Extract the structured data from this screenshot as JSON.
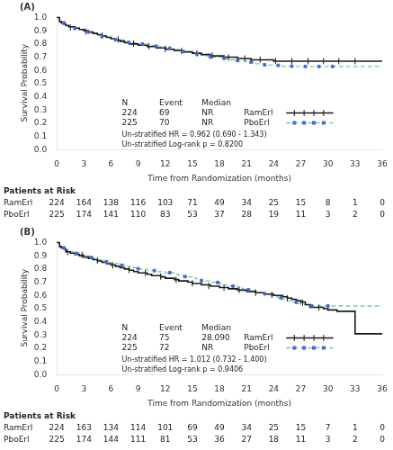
{
  "chart_data": [
    {
      "type": "line",
      "title": "(A)",
      "xlabel": "Time from Randomization (months)",
      "ylabel": "Survival Probability",
      "xlim": [
        0,
        36
      ],
      "ylim": [
        0.0,
        1.01
      ],
      "xticks": [
        0,
        3,
        6,
        9,
        12,
        15,
        18,
        21,
        24,
        27,
        30,
        33,
        36
      ],
      "yticks": [
        {
          "value": 0,
          "label": "0.0"
        },
        0.1,
        0.2,
        0.3,
        0.4,
        0.5,
        0.6,
        0.7,
        0.8,
        0.9,
        {
          "value": 1,
          "label": "1.0"
        }
      ],
      "grid": false,
      "series": [
        {
          "name": "PboErl",
          "type": "line",
          "line_style": "dashed",
          "color": "#7EC8A0",
          "x": [
            0,
            0.3,
            0.5,
            0.8,
            1.0,
            1.5,
            2.0,
            2.5,
            3.0,
            3.5,
            4.0,
            4.5,
            5.0,
            5.5,
            6.0,
            6.5,
            7.0,
            7.5,
            8.0,
            8.5,
            9.0,
            9.5,
            10.0,
            10.5,
            11.0,
            11.5,
            12.0,
            12.5,
            13.0,
            13.5,
            14.0,
            14.5,
            15.0,
            15.5,
            16.0,
            16.5,
            17.0,
            17.5,
            18.0,
            18.5,
            19.0,
            19.5,
            20.0,
            20.5,
            21.0,
            21.5,
            22.0,
            22.5,
            23.0,
            23.5,
            24.0,
            24.5,
            25.0,
            25.5,
            26.0,
            26.5,
            27.0,
            27.5,
            28.0,
            28.5,
            29.0,
            29.5,
            30.0,
            33.0,
            36.0
          ],
          "values": [
            1.0,
            0.97,
            0.96,
            0.95,
            0.94,
            0.93,
            0.92,
            0.91,
            0.9,
            0.89,
            0.88,
            0.87,
            0.86,
            0.85,
            0.84,
            0.83,
            0.83,
            0.82,
            0.81,
            0.81,
            0.8,
            0.8,
            0.79,
            0.79,
            0.78,
            0.78,
            0.77,
            0.76,
            0.76,
            0.75,
            0.74,
            0.74,
            0.73,
            0.72,
            0.72,
            0.71,
            0.7,
            0.7,
            0.7,
            0.69,
            0.68,
            0.68,
            0.67,
            0.67,
            0.66,
            0.66,
            0.65,
            0.65,
            0.64,
            0.64,
            0.64,
            0.64,
            0.63,
            0.63,
            0.63,
            0.63,
            0.63,
            0.63,
            0.63,
            0.63,
            0.63,
            0.63,
            0.63,
            0.63,
            0.63
          ]
        },
        {
          "name": "RamErl",
          "type": "line",
          "line_style": "solid",
          "color": "#1a1a1a",
          "x": [
            0,
            0.3,
            0.5,
            0.7,
            1.0,
            1.3,
            1.5,
            2.0,
            2.5,
            3.0,
            3.5,
            4.0,
            4.5,
            5.0,
            5.5,
            6.0,
            6.5,
            7.0,
            7.5,
            8.0,
            8.5,
            9.0,
            9.5,
            10.0,
            10.5,
            11.0,
            11.5,
            12.0,
            12.5,
            13.0,
            13.5,
            14.0,
            14.5,
            15.0,
            15.5,
            16.0,
            16.5,
            17.0,
            17.5,
            18.0,
            18.5,
            19.0,
            19.5,
            20.0,
            20.5,
            21.0,
            21.5,
            22.0,
            22.5,
            23.0,
            23.5,
            24.0,
            24.5,
            25.0,
            25.5,
            26.0,
            26.5,
            27.0,
            27.5,
            28.0,
            28.5,
            29.0,
            29.5,
            30.0,
            30.5,
            31.0,
            31.5,
            32.0,
            32.5,
            33.0,
            36.0
          ],
          "values": [
            1.0,
            0.97,
            0.96,
            0.95,
            0.94,
            0.93,
            0.93,
            0.92,
            0.91,
            0.9,
            0.89,
            0.88,
            0.87,
            0.86,
            0.85,
            0.84,
            0.83,
            0.82,
            0.81,
            0.8,
            0.8,
            0.79,
            0.79,
            0.78,
            0.78,
            0.77,
            0.77,
            0.76,
            0.76,
            0.75,
            0.75,
            0.74,
            0.74,
            0.73,
            0.73,
            0.72,
            0.72,
            0.71,
            0.71,
            0.71,
            0.7,
            0.7,
            0.7,
            0.69,
            0.69,
            0.69,
            0.68,
            0.68,
            0.68,
            0.68,
            0.68,
            0.67,
            0.67,
            0.67,
            0.67,
            0.67,
            0.67,
            0.67,
            0.67,
            0.67,
            0.67,
            0.67,
            0.67,
            0.67,
            0.67,
            0.67,
            0.67,
            0.67,
            0.67,
            0.67,
            0.67
          ]
        },
        {
          "name": "RamErl",
          "type": "scatter",
          "marker": "vline",
          "color": "#1a1a1a",
          "x": [
            1.5,
            3.2,
            5.0,
            6.8,
            8.5,
            10.2,
            12.0,
            13.8,
            15.5,
            17.2,
            19.0,
            20.8,
            22.5,
            24.2,
            26.0,
            27.8,
            29.5,
            31.2,
            33.0
          ],
          "values": [
            0.925,
            0.895,
            0.862,
            0.835,
            0.803,
            0.783,
            0.763,
            0.748,
            0.73,
            0.712,
            0.698,
            0.69,
            0.682,
            0.672,
            0.67,
            0.67,
            0.67,
            0.67,
            0.67
          ]
        },
        {
          "name": "PboErl",
          "type": "scatter",
          "marker": "square",
          "color": "#4169E1",
          "x": [
            0.8,
            2.0,
            3.5,
            5.0,
            6.5,
            8.0,
            9.5,
            11.0,
            12.5,
            14.0,
            15.5,
            17.0,
            18.5,
            20.0,
            21.5,
            23.0,
            24.5,
            26.0,
            27.5,
            29.0,
            30.5
          ],
          "values": [
            0.96,
            0.918,
            0.89,
            0.858,
            0.832,
            0.81,
            0.8,
            0.783,
            0.768,
            0.742,
            0.722,
            0.702,
            0.692,
            0.675,
            0.663,
            0.642,
            0.638,
            0.632,
            0.63,
            0.63,
            0.63
          ]
        }
      ],
      "table": {
        "columns": [
          "N",
          "Event",
          "Median"
        ],
        "rows": [
          {
            "name": "RamErl",
            "values": [
              224,
              69,
              "NR"
            ]
          },
          {
            "name": "PboErl",
            "values": [
              225,
              70,
              "NR"
            ]
          }
        ]
      },
      "annotations": [
        "Un-stratified HR = 0.962 (0.690 - 1.343)",
        "Un-stratified Log-rank p = 0.8200"
      ],
      "at_risk": {
        "title": "Patients at Risk",
        "x": [
          0,
          3,
          6,
          9,
          12,
          15,
          18,
          21,
          24,
          27,
          30,
          33,
          36
        ],
        "rows": [
          {
            "name": "RamErl",
            "values": [
              224,
              164,
              138,
              116,
              103,
              71,
              49,
              34,
              25,
              15,
              8,
              1,
              0
            ]
          },
          {
            "name": "PboErl",
            "values": [
              225,
              174,
              141,
              110,
              83,
              53,
              37,
              28,
              19,
              11,
              3,
              2,
              0
            ]
          }
        ]
      }
    },
    {
      "type": "line",
      "title": "(B)",
      "xlabel": "Time from Randomization (months)",
      "ylabel": "Survival Probability",
      "xlim": [
        0,
        36
      ],
      "ylim": [
        0.0,
        1.01
      ],
      "xticks": [
        0,
        3,
        6,
        9,
        12,
        15,
        18,
        21,
        24,
        27,
        30,
        33,
        36
      ],
      "yticks": [
        {
          "value": 0,
          "label": "0.0"
        },
        0.1,
        0.2,
        0.3,
        0.4,
        0.5,
        0.6,
        0.7,
        0.8,
        0.9,
        {
          "value": 1,
          "label": "1.0"
        }
      ],
      "grid": false,
      "series": [
        {
          "name": "PboErl",
          "type": "line",
          "line_style": "dashed",
          "color": "#7EC8A0",
          "x": [
            0,
            0.3,
            0.5,
            0.8,
            1.0,
            1.5,
            2.0,
            2.5,
            3.0,
            3.5,
            4.0,
            4.5,
            5.0,
            5.5,
            6.0,
            6.5,
            7.0,
            7.5,
            8.0,
            8.5,
            9.0,
            9.5,
            10.0,
            10.5,
            11.0,
            11.5,
            12.0,
            12.5,
            13.0,
            13.5,
            14.0,
            14.5,
            15.0,
            15.5,
            16.0,
            16.5,
            17.0,
            17.5,
            18.0,
            18.5,
            19.0,
            19.5,
            20.0,
            20.5,
            21.0,
            21.5,
            22.0,
            22.5,
            23.0,
            23.5,
            24.0,
            24.5,
            25.0,
            25.5,
            26.0,
            26.5,
            27.0,
            27.5,
            28.0,
            28.5,
            29.0,
            30.0,
            33.0,
            36.0
          ],
          "values": [
            1.0,
            0.97,
            0.96,
            0.95,
            0.94,
            0.93,
            0.92,
            0.91,
            0.9,
            0.89,
            0.88,
            0.87,
            0.86,
            0.85,
            0.84,
            0.84,
            0.83,
            0.82,
            0.82,
            0.81,
            0.8,
            0.8,
            0.79,
            0.79,
            0.78,
            0.78,
            0.77,
            0.77,
            0.76,
            0.75,
            0.74,
            0.74,
            0.73,
            0.72,
            0.71,
            0.71,
            0.7,
            0.7,
            0.69,
            0.68,
            0.67,
            0.67,
            0.66,
            0.65,
            0.64,
            0.64,
            0.63,
            0.62,
            0.61,
            0.6,
            0.59,
            0.58,
            0.57,
            0.56,
            0.55,
            0.54,
            0.53,
            0.53,
            0.52,
            0.52,
            0.52,
            0.52,
            0.52,
            0.52
          ]
        },
        {
          "name": "RamErl",
          "type": "line",
          "line_style": "solid",
          "color": "#1a1a1a",
          "x": [
            0,
            0.3,
            0.5,
            0.8,
            1.0,
            1.5,
            2.0,
            2.5,
            3.0,
            3.5,
            4.0,
            4.5,
            5.0,
            5.5,
            6.0,
            6.5,
            7.0,
            7.5,
            8.0,
            8.5,
            9.0,
            9.5,
            10.0,
            10.5,
            11.0,
            11.5,
            12.0,
            12.5,
            13.0,
            13.5,
            14.0,
            14.5,
            15.0,
            15.5,
            16.0,
            16.5,
            17.0,
            17.5,
            18.0,
            18.5,
            19.0,
            19.5,
            20.0,
            20.5,
            21.0,
            21.5,
            22.0,
            22.5,
            23.0,
            23.5,
            24.0,
            24.5,
            25.0,
            25.5,
            26.0,
            26.5,
            27.0,
            27.5,
            28.0,
            28.5,
            29.0,
            29.5,
            30.0,
            30.5,
            31.0,
            32.0,
            33.0,
            36.0
          ],
          "values": [
            1.0,
            0.97,
            0.96,
            0.95,
            0.93,
            0.92,
            0.91,
            0.9,
            0.89,
            0.88,
            0.87,
            0.86,
            0.85,
            0.84,
            0.83,
            0.82,
            0.81,
            0.8,
            0.79,
            0.78,
            0.77,
            0.77,
            0.76,
            0.75,
            0.75,
            0.74,
            0.73,
            0.73,
            0.72,
            0.71,
            0.71,
            0.7,
            0.69,
            0.69,
            0.68,
            0.68,
            0.67,
            0.67,
            0.66,
            0.66,
            0.65,
            0.65,
            0.64,
            0.64,
            0.63,
            0.63,
            0.62,
            0.62,
            0.61,
            0.61,
            0.6,
            0.6,
            0.59,
            0.58,
            0.57,
            0.56,
            0.55,
            0.53,
            0.51,
            0.51,
            0.51,
            0.5,
            0.49,
            0.49,
            0.48,
            0.48,
            0.31,
            0.31
          ]
        },
        {
          "name": "RamErl",
          "type": "scatter",
          "marker": "vline",
          "color": "#1a1a1a",
          "x": [
            1.2,
            2.8,
            4.5,
            6.2,
            8.0,
            9.8,
            11.5,
            13.2,
            15.0,
            16.8,
            18.5,
            20.2,
            22.0,
            23.8,
            25.5,
            27.2,
            29.0
          ],
          "values": [
            0.928,
            0.906,
            0.863,
            0.828,
            0.792,
            0.77,
            0.742,
            0.718,
            0.692,
            0.672,
            0.658,
            0.642,
            0.62,
            0.605,
            0.578,
            0.545,
            0.508
          ]
        },
        {
          "name": "PboErl",
          "type": "scatter",
          "marker": "square",
          "color": "#4169E1",
          "x": [
            0.8,
            2.2,
            3.8,
            5.5,
            7.2,
            9.0,
            10.8,
            12.5,
            14.2,
            16.0,
            17.8,
            19.5,
            21.2,
            23.0,
            24.8,
            26.5,
            28.2,
            30.0
          ],
          "values": [
            0.96,
            0.918,
            0.888,
            0.855,
            0.828,
            0.802,
            0.787,
            0.772,
            0.742,
            0.712,
            0.698,
            0.67,
            0.643,
            0.612,
            0.582,
            0.548,
            0.522,
            0.52
          ]
        }
      ],
      "table": {
        "columns": [
          "N",
          "Event",
          "Median"
        ],
        "rows": [
          {
            "name": "RamErl",
            "values": [
              224,
              75,
              "28.090"
            ]
          },
          {
            "name": "PboErl",
            "values": [
              225,
              72,
              "NR"
            ]
          }
        ]
      },
      "annotations": [
        "Un-stratified HR = 1.012 (0.732 - 1.400)",
        "Un-stratified Log-rank p = 0.9406"
      ],
      "at_risk": {
        "title": "Patients at Risk",
        "x": [
          0,
          3,
          6,
          9,
          12,
          15,
          18,
          21,
          24,
          27,
          30,
          33,
          36
        ],
        "rows": [
          {
            "name": "RamErl",
            "values": [
              224,
              163,
              134,
              114,
              101,
              69,
              49,
              34,
              25,
              15,
              7,
              1,
              0
            ]
          },
          {
            "name": "PboErl",
            "values": [
              225,
              174,
              144,
              111,
              81,
              53,
              36,
              27,
              18,
              11,
              3,
              2,
              0
            ]
          }
        ]
      }
    }
  ]
}
